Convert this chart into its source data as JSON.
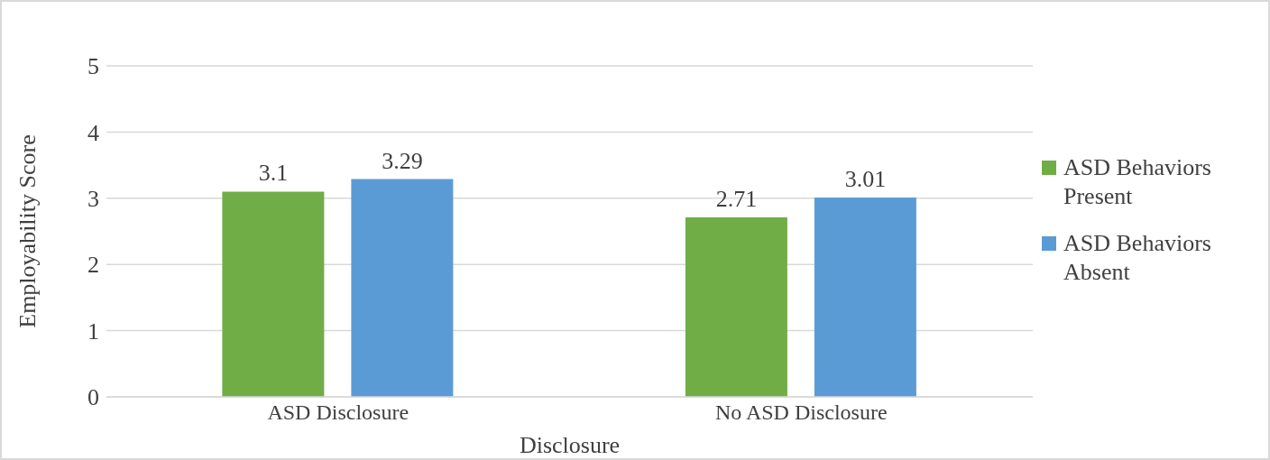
{
  "chart_data": {
    "type": "bar",
    "xlabel": "Disclosure",
    "ylabel": "Employability Score",
    "categories": [
      "ASD Disclosure",
      "No ASD Disclosure"
    ],
    "series": [
      {
        "name": "ASD Behaviors Present",
        "color": "#70ad47",
        "values": [
          3.1,
          2.71
        ]
      },
      {
        "name": "ASD Behaviors Absent",
        "color": "#5b9bd5",
        "values": [
          3.29,
          3.01
        ]
      }
    ],
    "ylim": [
      0,
      5
    ],
    "yticks": [
      0,
      1,
      2,
      3,
      4,
      5
    ],
    "grid": "y",
    "legend": "right",
    "data_labels": true
  }
}
